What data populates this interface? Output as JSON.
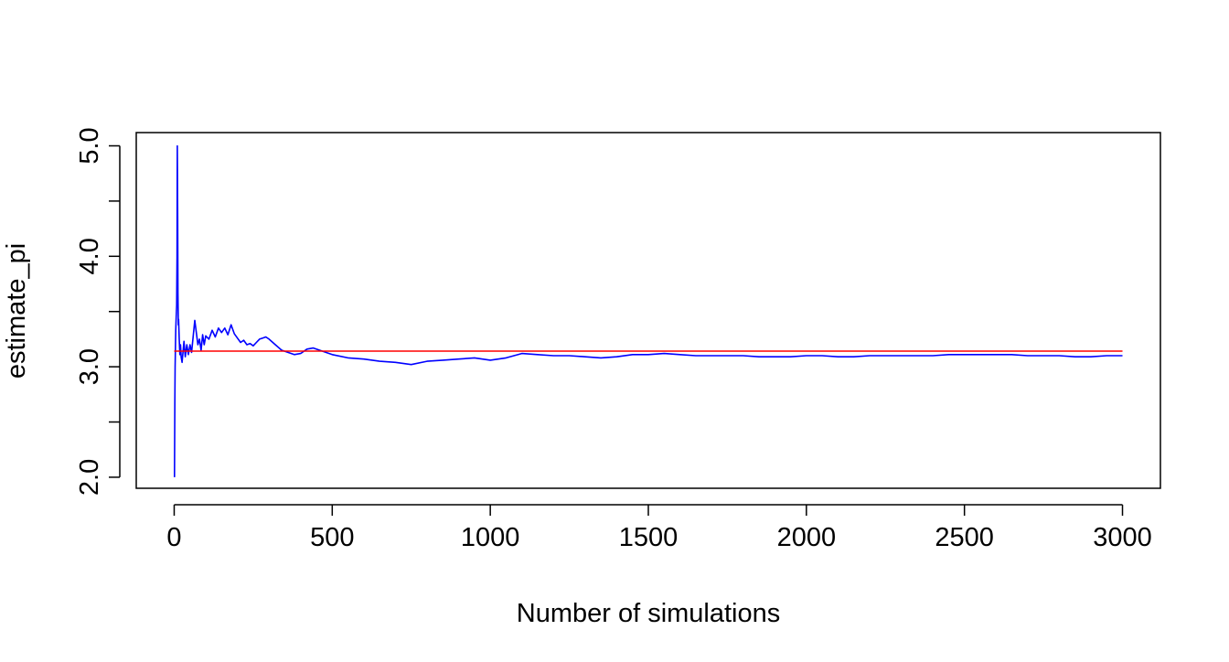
{
  "chart_data": {
    "type": "line",
    "title": "",
    "xlabel": "Number of simulations",
    "ylabel": "estimate_pi",
    "xlim": [
      -120,
      3120
    ],
    "ylim": [
      1.9,
      5.12
    ],
    "x_ticks": [
      0,
      500,
      1000,
      1500,
      2000,
      2500,
      3000
    ],
    "x_tick_labels": [
      "0",
      "500",
      "1000",
      "1500",
      "2000",
      "2500",
      "3000"
    ],
    "y_ticks": [
      2.0,
      2.5,
      3.0,
      3.5,
      4.0,
      4.5,
      5.0
    ],
    "y_tick_labels": [
      "2.0",
      "",
      "3.0",
      "",
      "4.0",
      "",
      "5.0"
    ],
    "grid": false,
    "legend": "none",
    "series": [
      {
        "color": "#0000ff",
        "x": [
          1,
          2,
          3,
          4,
          5,
          6,
          7,
          8,
          9,
          10,
          11,
          12,
          13,
          14,
          16,
          18,
          20,
          22,
          25,
          28,
          31,
          35,
          40,
          45,
          50,
          55,
          60,
          65,
          70,
          75,
          80,
          85,
          90,
          95,
          100,
          110,
          120,
          130,
          140,
          150,
          160,
          170,
          180,
          190,
          200,
          210,
          220,
          230,
          240,
          250,
          260,
          270,
          280,
          290,
          300,
          320,
          340,
          360,
          380,
          400,
          420,
          440,
          460,
          480,
          500,
          550,
          600,
          650,
          700,
          750,
          800,
          850,
          900,
          950,
          1000,
          1050,
          1100,
          1150,
          1200,
          1250,
          1300,
          1350,
          1400,
          1450,
          1500,
          1550,
          1600,
          1650,
          1700,
          1750,
          1800,
          1850,
          1900,
          1950,
          2000,
          2050,
          2100,
          2150,
          2200,
          2250,
          2300,
          2350,
          2400,
          2450,
          2500,
          2550,
          2600,
          2650,
          2700,
          2750,
          2800,
          2850,
          2900,
          2950,
          3000
        ],
        "values": [
          2.0,
          2.67,
          3.0,
          3.2,
          3.33,
          3.43,
          3.5,
          3.56,
          4.0,
          5.0,
          4.36,
          3.67,
          3.38,
          3.43,
          3.25,
          3.11,
          3.2,
          3.09,
          3.04,
          3.14,
          3.23,
          3.09,
          3.2,
          3.11,
          3.2,
          3.13,
          3.27,
          3.42,
          3.31,
          3.2,
          3.25,
          3.15,
          3.29,
          3.2,
          3.28,
          3.25,
          3.33,
          3.27,
          3.35,
          3.31,
          3.35,
          3.29,
          3.38,
          3.3,
          3.26,
          3.22,
          3.24,
          3.2,
          3.21,
          3.19,
          3.22,
          3.25,
          3.26,
          3.27,
          3.25,
          3.2,
          3.15,
          3.13,
          3.11,
          3.12,
          3.16,
          3.17,
          3.15,
          3.13,
          3.11,
          3.08,
          3.07,
          3.05,
          3.04,
          3.02,
          3.05,
          3.06,
          3.07,
          3.08,
          3.06,
          3.08,
          3.12,
          3.11,
          3.1,
          3.1,
          3.09,
          3.08,
          3.09,
          3.11,
          3.11,
          3.12,
          3.11,
          3.1,
          3.1,
          3.1,
          3.1,
          3.09,
          3.09,
          3.09,
          3.1,
          3.1,
          3.09,
          3.09,
          3.1,
          3.1,
          3.1,
          3.1,
          3.1,
          3.11,
          3.11,
          3.11,
          3.11,
          3.11,
          3.1,
          3.1,
          3.1,
          3.09,
          3.09,
          3.1,
          3.1
        ]
      }
    ],
    "reference_line": {
      "color": "#ff0000",
      "y": 3.14159,
      "x_range": [
        0,
        3000
      ]
    }
  }
}
